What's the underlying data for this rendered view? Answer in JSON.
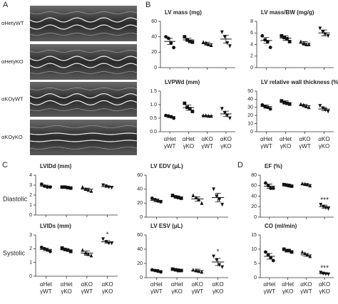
{
  "panel_labels": [
    "A",
    "B",
    "C",
    "D"
  ],
  "image_labels": [
    "αHetγWT",
    "αHetγKO",
    "αKOγWT",
    "αKOγKO"
  ],
  "row_labels": [
    "Diastolic",
    "Systolic"
  ],
  "groups": [
    {
      "line1": "αHet",
      "line2": "γWT"
    },
    {
      "line1": "αHet",
      "line2": "γKO"
    },
    {
      "line1": "αKO",
      "line2": "γWT"
    },
    {
      "line1": "αKO",
      "line2": "γKO"
    }
  ],
  "chart_data": [
    {
      "type": "dot",
      "title": "LV mass (mg)",
      "ylim": [
        0,
        60
      ],
      "yticks": [
        0,
        20,
        40,
        60
      ],
      "series": [
        {
          "marker": "circle",
          "values": [
            40,
            38,
            32,
            26
          ],
          "mean": 34,
          "sem": 4
        },
        {
          "marker": "square",
          "values": [
            40,
            36,
            34,
            33
          ],
          "mean": 36,
          "sem": 2
        },
        {
          "marker": "triangle",
          "values": [
            33,
            32,
            30,
            29
          ],
          "mean": 31,
          "sem": 2
        },
        {
          "marker": "triangle-down",
          "values": [
            46,
            40,
            32,
            28
          ],
          "mean": 37,
          "sem": 5
        }
      ]
    },
    {
      "type": "dot",
      "title": "LV mass/BW (mg/g)",
      "ylim": [
        0,
        8
      ],
      "yticks": [
        0,
        2,
        4,
        6,
        8
      ],
      "series": [
        {
          "marker": "circle",
          "values": [
            5.5,
            4.8,
            4.5,
            3.5
          ],
          "mean": 4.7,
          "sem": 0.5
        },
        {
          "marker": "square",
          "values": [
            5.5,
            5.2,
            5.0,
            4.5
          ],
          "mean": 5.1,
          "sem": 0.4
        },
        {
          "marker": "triangle",
          "values": [
            4.5,
            4.2,
            4.0,
            4.0
          ],
          "mean": 4.2,
          "sem": 0.3
        },
        {
          "marker": "triangle-down",
          "values": [
            6.8,
            6.2,
            5.8,
            5.5
          ],
          "mean": 6.0,
          "sem": 0.5
        }
      ]
    },
    {
      "type": "dot",
      "title": "LVPWd (mm)",
      "ylim": [
        0,
        1.5
      ],
      "yticks": [
        {
          "value": 0,
          "label": "0.0"
        },
        0.5,
        {
          "value": 1,
          "label": "1.0"
        },
        1.5
      ],
      "series": [
        {
          "marker": "circle",
          "values": [
            0.6,
            0.58,
            0.55,
            0.5
          ],
          "mean": 0.56,
          "sem": 0.04
        },
        {
          "marker": "square",
          "values": [
            1.05,
            0.9,
            0.85,
            0.75
          ],
          "mean": 0.89,
          "sem": 0.1
        },
        {
          "marker": "triangle",
          "values": [
            0.6,
            0.6,
            0.58,
            0.58
          ],
          "mean": 0.59,
          "sem": 0.01
        },
        {
          "marker": "triangle-down",
          "values": [
            0.85,
            0.7,
            0.6,
            0.5
          ],
          "mean": 0.66,
          "sem": 0.1
        }
      ]
    },
    {
      "type": "dot",
      "title": "LV relative wall thickness (%)",
      "ylim": [
        0,
        50
      ],
      "yticks": [
        0,
        10,
        20,
        30,
        40,
        50
      ],
      "series": [
        {
          "marker": "circle",
          "values": [
            33,
            31,
            30,
            28
          ],
          "mean": 31,
          "sem": 2
        },
        {
          "marker": "square",
          "values": [
            38,
            36,
            35,
            34
          ],
          "mean": 36,
          "sem": 2
        },
        {
          "marker": "triangle",
          "values": [
            34,
            33,
            31,
            30
          ],
          "mean": 32,
          "sem": 1.5
        },
        {
          "marker": "triangle-down",
          "values": [
            32,
            29,
            27,
            25
          ],
          "mean": 28,
          "sem": 2
        }
      ]
    },
    {
      "type": "dot",
      "title": "LVIDd (mm)",
      "ylim": [
        0,
        4
      ],
      "yticks": [
        0,
        1,
        2,
        3,
        4
      ],
      "series": [
        {
          "marker": "circle",
          "values": [
            3.1,
            2.9,
            2.8,
            2.8
          ],
          "mean": 2.9,
          "sem": 0.1
        },
        {
          "marker": "square",
          "values": [
            2.8,
            2.8,
            2.75,
            2.7
          ],
          "mean": 2.76,
          "sem": 0.05
        },
        {
          "marker": "triangle",
          "values": [
            2.8,
            2.6,
            2.5,
            2.4
          ],
          "mean": 2.6,
          "sem": 0.1
        },
        {
          "marker": "triangle-down",
          "values": [
            3.0,
            2.9,
            2.8,
            2.75
          ],
          "mean": 2.86,
          "sem": 0.08
        }
      ]
    },
    {
      "type": "dot",
      "title": "LV EDV (μL)",
      "ylim": [
        0,
        60
      ],
      "yticks": [
        0,
        20,
        40,
        60
      ],
      "series": [
        {
          "marker": "circle",
          "values": [
            27,
            25,
            23,
            22
          ],
          "mean": 24,
          "sem": 2
        },
        {
          "marker": "square",
          "values": [
            31,
            29,
            28,
            27
          ],
          "mean": 29,
          "sem": 1.5
        },
        {
          "marker": "triangle",
          "values": [
            31,
            28,
            25,
            20
          ],
          "mean": 26,
          "sem": 3
        },
        {
          "marker": "triangle-down",
          "values": [
            40,
            30,
            25,
            18
          ],
          "mean": 28,
          "sem": 6
        }
      ]
    },
    {
      "type": "dot",
      "title": "LVIDs (mm)",
      "ylim": [
        0,
        3
      ],
      "yticks": [
        0,
        1,
        2,
        3
      ],
      "series": [
        {
          "marker": "circle",
          "values": [
            2.1,
            2.0,
            1.9,
            1.8
          ],
          "mean": 1.95,
          "sem": 0.1
        },
        {
          "marker": "square",
          "values": [
            2.05,
            1.95,
            1.9,
            1.8
          ],
          "mean": 1.92,
          "sem": 0.07
        },
        {
          "marker": "triangle",
          "values": [
            1.9,
            1.7,
            1.6,
            1.5
          ],
          "mean": 1.68,
          "sem": 0.15
        },
        {
          "marker": "triangle-down",
          "values": [
            2.7,
            2.5,
            2.4,
            2.4
          ],
          "mean": 2.5,
          "sem": 0.1,
          "annotation": "*"
        }
      ]
    },
    {
      "type": "dot",
      "title": "LV ESV (μL)",
      "ylim": [
        0,
        60
      ],
      "yticks": [
        0,
        20,
        40,
        60
      ],
      "series": [
        {
          "marker": "circle",
          "values": [
            11,
            10,
            9,
            8
          ],
          "mean": 10,
          "sem": 1.5
        },
        {
          "marker": "square",
          "values": [
            12,
            11,
            10,
            10
          ],
          "mean": 11,
          "sem": 1.5
        },
        {
          "marker": "triangle",
          "values": [
            11,
            10,
            9,
            8
          ],
          "mean": 10,
          "sem": 2
        },
        {
          "marker": "triangle-down",
          "values": [
            30,
            25,
            18,
            15
          ],
          "mean": 22,
          "sem": 5,
          "annotation": "*"
        }
      ]
    },
    {
      "type": "dot",
      "title": "EF (%)",
      "ylim": [
        0,
        80
      ],
      "yticks": [
        0,
        20,
        40,
        60,
        80
      ],
      "series": [
        {
          "marker": "circle",
          "values": [
            65,
            60,
            55,
            55
          ],
          "mean": 59,
          "sem": 4
        },
        {
          "marker": "square",
          "values": [
            62,
            61,
            60,
            59
          ],
          "mean": 61,
          "sem": 2
        },
        {
          "marker": "triangle",
          "values": [
            64,
            63,
            62,
            60
          ],
          "mean": 62,
          "sem": 2
        },
        {
          "marker": "triangle-down",
          "values": [
            24,
            20,
            18,
            16
          ],
          "mean": 20,
          "sem": 3,
          "annotation": "***"
        }
      ]
    },
    {
      "type": "dot",
      "title": "CO (ml/min)",
      "ylim": [
        0,
        15
      ],
      "yticks": [
        0,
        5,
        10,
        15
      ],
      "series": [
        {
          "marker": "circle",
          "values": [
            9,
            8,
            7,
            6
          ],
          "mean": 7.5,
          "sem": 1
        },
        {
          "marker": "square",
          "values": [
            10,
            9.5,
            9.5,
            9
          ],
          "mean": 9.5,
          "sem": 0.5
        },
        {
          "marker": "triangle",
          "values": [
            9,
            8.5,
            8,
            7.5
          ],
          "mean": 8,
          "sem": 0.5
        },
        {
          "marker": "triangle-down",
          "values": [
            1.8,
            1.5,
            1.3,
            1.2
          ],
          "mean": 1.5,
          "sem": 0.2,
          "annotation": "***"
        }
      ]
    }
  ]
}
